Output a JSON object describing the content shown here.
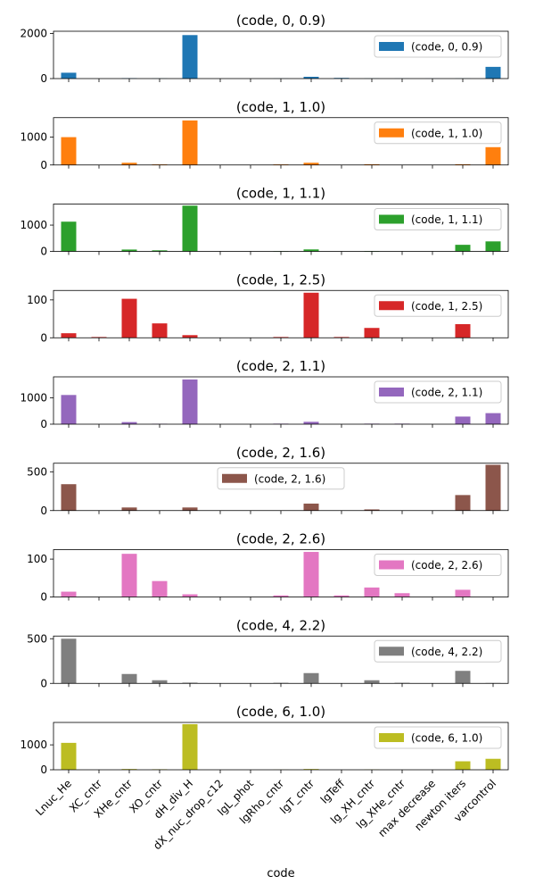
{
  "chart_data": {
    "type": "bar",
    "xlabel": "code",
    "categories": [
      "Lnuc_He",
      "XC_cntr",
      "XHe_cntr",
      "XO_cntr",
      "dH_div_H",
      "dX_nuc_drop_c12",
      "lgL_phot",
      "lgRho_cntr",
      "lgT_cntr",
      "lgTeff",
      "lg_XH_cntr",
      "lg_XHe_cntr",
      "max decrease",
      "newton iters",
      "varcontrol"
    ],
    "series": [
      {
        "name": "(code, 0, 0.9)",
        "title": "(code, 0, 0.9)",
        "color": "#1f77b4",
        "ylim": [
          0,
          2100
        ],
        "yticks": [
          "0",
          "2000"
        ],
        "legend": "right",
        "values": [
          260,
          0,
          20,
          8,
          1930,
          0,
          0,
          6,
          80,
          30,
          8,
          6,
          4,
          8,
          520
        ]
      },
      {
        "name": "(code, 1, 1.0)",
        "title": "(code, 1, 1.0)",
        "color": "#ff7f0e",
        "ylim": [
          0,
          1700
        ],
        "yticks": [
          "0",
          "1000"
        ],
        "legend": "right",
        "values": [
          1000,
          0,
          80,
          20,
          1600,
          0,
          0,
          20,
          80,
          0,
          25,
          0,
          0,
          25,
          640
        ]
      },
      {
        "name": "(code, 1, 1.1)",
        "title": "(code, 1, 1.1)",
        "color": "#2ca02c",
        "ylim": [
          0,
          1800
        ],
        "yticks": [
          "0",
          "1000"
        ],
        "legend": "right",
        "values": [
          1130,
          0,
          70,
          40,
          1740,
          0,
          0,
          10,
          75,
          0,
          15,
          0,
          0,
          250,
          380
        ]
      },
      {
        "name": "(code, 1, 2.5)",
        "title": "(code, 1, 2.5)",
        "color": "#d62728",
        "ylim": [
          0,
          125
        ],
        "yticks": [
          "0",
          "100"
        ],
        "legend": "right",
        "values": [
          12,
          2,
          103,
          38,
          7,
          0,
          0,
          2,
          119,
          2,
          26,
          0,
          0,
          36,
          0
        ]
      },
      {
        "name": "(code, 2, 1.1)",
        "title": "(code, 2, 1.1)",
        "color": "#9467bd",
        "ylim": [
          0,
          1800
        ],
        "yticks": [
          "0",
          "1000"
        ],
        "legend": "right",
        "values": [
          1110,
          0,
          80,
          15,
          1700,
          0,
          0,
          20,
          90,
          0,
          20,
          20,
          0,
          290,
          420
        ]
      },
      {
        "name": "(code, 2, 1.6)",
        "title": "(code, 2, 1.6)",
        "color": "#8c564b",
        "ylim": [
          0,
          610
        ],
        "yticks": [
          "0",
          "500"
        ],
        "legend": "center",
        "values": [
          340,
          0,
          40,
          0,
          40,
          0,
          0,
          0,
          90,
          0,
          15,
          0,
          0,
          200,
          590
        ]
      },
      {
        "name": "(code, 2, 2.6)",
        "title": "(code, 2, 2.6)",
        "color": "#e377c2",
        "ylim": [
          0,
          125
        ],
        "yticks": [
          "0",
          "100"
        ],
        "legend": "right",
        "values": [
          14,
          0,
          114,
          42,
          7,
          0,
          0,
          4,
          119,
          4,
          25,
          10,
          0,
          19,
          0
        ]
      },
      {
        "name": "(code, 4, 2.2)",
        "title": "(code, 4, 2.2)",
        "color": "#7f7f7f",
        "ylim": [
          0,
          530
        ],
        "yticks": [
          "0",
          "500"
        ],
        "legend": "right",
        "values": [
          500,
          0,
          105,
          35,
          8,
          0,
          0,
          6,
          115,
          0,
          35,
          6,
          0,
          140,
          4
        ]
      },
      {
        "name": "(code, 6, 1.0)",
        "title": "(code, 6, 1.0)",
        "color": "#bcbd22",
        "ylim": [
          0,
          1900
        ],
        "yticks": [
          "0",
          "1000"
        ],
        "legend": "right",
        "values": [
          1080,
          0,
          30,
          20,
          1830,
          0,
          0,
          6,
          30,
          0,
          10,
          0,
          0,
          340,
          440
        ]
      }
    ]
  }
}
